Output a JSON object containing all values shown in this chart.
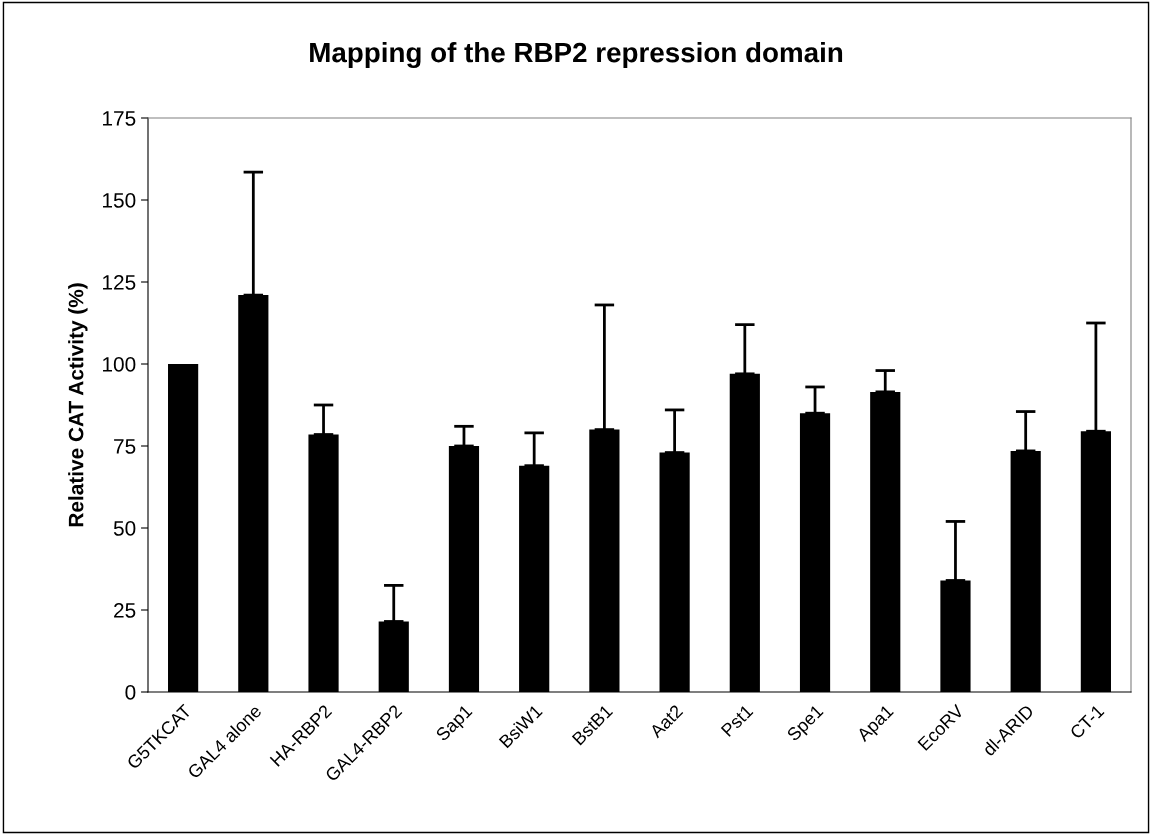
{
  "chart_data": {
    "type": "bar",
    "title": "Mapping of the RBP2 repression domain",
    "ylabel": "Relative CAT Activity (%)",
    "categories": [
      "G5TKCAT",
      "GAL4 alone",
      "HA-RBP2",
      "GAL4-RBP2",
      "Sap1",
      "BsiW1",
      "BstB1",
      "Aat2",
      "Pst1",
      "Spe1",
      "Apa1",
      "EcoRV",
      "dl-ARID",
      "CT-1"
    ],
    "values": [
      100,
      121,
      78.5,
      21.5,
      75,
      69,
      80,
      73,
      97,
      85,
      91.5,
      34,
      73.5,
      79.5
    ],
    "errors": [
      null,
      [
        121,
        158.5
      ],
      [
        78.5,
        87.5
      ],
      [
        21.5,
        32.5
      ],
      [
        75,
        81
      ],
      [
        69,
        79
      ],
      [
        80,
        118
      ],
      [
        73,
        86
      ],
      [
        97,
        112
      ],
      [
        85,
        93
      ],
      [
        91.5,
        98
      ],
      [
        34,
        52
      ],
      [
        73.5,
        85.5
      ],
      [
        79.5,
        112.5
      ]
    ],
    "color": "#000000",
    "ylim": [
      0,
      175
    ],
    "yticks": [
      0,
      25,
      50,
      75,
      100,
      125,
      150,
      175
    ],
    "grid": false,
    "legend": false
  }
}
